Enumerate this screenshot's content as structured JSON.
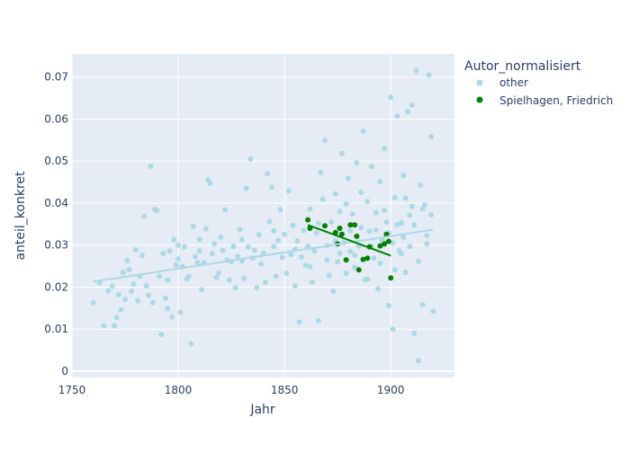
{
  "chart_data": {
    "type": "scatter",
    "xlabel": "Jahr",
    "ylabel": "anteil_konkret",
    "xlim": [
      1750,
      1930
    ],
    "ylim": [
      -0.0015,
      0.0755
    ],
    "xticks": [
      1750,
      1800,
      1850,
      1900
    ],
    "yticks": [
      0,
      0.01,
      0.02,
      0.03,
      0.04,
      0.05,
      0.06,
      0.07
    ],
    "xtick_labels": [
      "1750",
      "1800",
      "1850",
      "1900"
    ],
    "ytick_labels": [
      "0",
      "0.01",
      "0.02",
      "0.03",
      "0.04",
      "0.05",
      "0.06",
      "0.07"
    ],
    "grid": true,
    "legend": {
      "title": "Autor_normalisiert",
      "placement": "top-right-outside"
    },
    "series": [
      {
        "name": "other",
        "color": "#add8e6",
        "trendline": {
          "x": [
            1760,
            1920
          ],
          "y": [
            0.0213,
            0.0337
          ]
        },
        "points": [
          [
            1760,
            0.0163
          ],
          [
            1763,
            0.021
          ],
          [
            1765,
            0.0108
          ],
          [
            1767,
            0.0191
          ],
          [
            1769,
            0.0202
          ],
          [
            1770,
            0.0108
          ],
          [
            1771,
            0.0128
          ],
          [
            1772,
            0.0182
          ],
          [
            1773,
            0.0146
          ],
          [
            1774,
            0.0235
          ],
          [
            1775,
            0.0171
          ],
          [
            1776,
            0.0263
          ],
          [
            1777,
            0.0242
          ],
          [
            1778,
            0.019
          ],
          [
            1779,
            0.0207
          ],
          [
            1780,
            0.0289
          ],
          [
            1781,
            0.0168
          ],
          [
            1782,
            0.0226
          ],
          [
            1783,
            0.0275
          ],
          [
            1784,
            0.0368
          ],
          [
            1785,
            0.0203
          ],
          [
            1786,
            0.0181
          ],
          [
            1787,
            0.0488
          ],
          [
            1788,
            0.0163
          ],
          [
            1789,
            0.0385
          ],
          [
            1790,
            0.0382
          ],
          [
            1791,
            0.0226
          ],
          [
            1792,
            0.0087
          ],
          [
            1793,
            0.028
          ],
          [
            1794,
            0.0174
          ],
          [
            1795,
            0.0217
          ],
          [
            1796,
            0.0286
          ],
          [
            1797,
            0.0129
          ],
          [
            1798,
            0.0313
          ],
          [
            1799,
            0.0253
          ],
          [
            1800,
            0.03
          ],
          [
            1801,
            0.014
          ],
          [
            1802,
            0.0249
          ],
          [
            1803,
            0.0296
          ],
          [
            1804,
            0.022
          ],
          [
            1805,
            0.0225
          ],
          [
            1806,
            0.0065
          ],
          [
            1807,
            0.0345
          ],
          [
            1808,
            0.0273
          ],
          [
            1809,
            0.0259
          ],
          [
            1810,
            0.0314
          ],
          [
            1811,
            0.0194
          ],
          [
            1812,
            0.0258
          ],
          [
            1813,
            0.0339
          ],
          [
            1814,
            0.0455
          ],
          [
            1815,
            0.0447
          ],
          [
            1816,
            0.028
          ],
          [
            1817,
            0.0303
          ],
          [
            1818,
            0.0223
          ],
          [
            1819,
            0.0234
          ],
          [
            1820,
            0.0319
          ],
          [
            1821,
            0.0287
          ],
          [
            1822,
            0.0384
          ],
          [
            1823,
            0.0265
          ],
          [
            1824,
            0.0217
          ],
          [
            1825,
            0.026
          ],
          [
            1826,
            0.0297
          ],
          [
            1827,
            0.0198
          ],
          [
            1828,
            0.0273
          ],
          [
            1829,
            0.0337
          ],
          [
            1830,
            0.0313
          ],
          [
            1831,
            0.0221
          ],
          [
            1832,
            0.0435
          ],
          [
            1833,
            0.0296
          ],
          [
            1834,
            0.0505
          ],
          [
            1835,
            0.0269
          ],
          [
            1836,
            0.0288
          ],
          [
            1837,
            0.0198
          ],
          [
            1838,
            0.0325
          ],
          [
            1839,
            0.0255
          ],
          [
            1840,
            0.0281
          ],
          [
            1841,
            0.0212
          ],
          [
            1842,
            0.047
          ],
          [
            1843,
            0.0356
          ],
          [
            1844,
            0.0438
          ],
          [
            1845,
            0.0297
          ],
          [
            1846,
            0.0226
          ],
          [
            1847,
            0.0311
          ],
          [
            1848,
            0.0385
          ],
          [
            1849,
            0.0271
          ],
          [
            1850,
            0.0326
          ],
          [
            1851,
            0.0233
          ],
          [
            1852,
            0.0429
          ],
          [
            1853,
            0.0278
          ],
          [
            1854,
            0.0347
          ],
          [
            1855,
            0.0203
          ],
          [
            1856,
            0.031
          ],
          [
            1857,
            0.0117
          ],
          [
            1858,
            0.0272
          ],
          [
            1859,
            0.0335
          ],
          [
            1860,
            0.0252
          ],
          [
            1861,
            0.0297
          ],
          [
            1862,
            0.0386
          ],
          [
            1863,
            0.0212
          ],
          [
            1864,
            0.0286
          ],
          [
            1865,
            0.0329
          ],
          [
            1866,
            0.012
          ],
          [
            1867,
            0.0473
          ],
          [
            1868,
            0.0409
          ],
          [
            1869,
            0.0549
          ],
          [
            1870,
            0.0299
          ],
          [
            1871,
            0.0228
          ],
          [
            1872,
            0.0355
          ],
          [
            1873,
            0.019
          ],
          [
            1874,
            0.0422
          ],
          [
            1875,
            0.026
          ],
          [
            1876,
            0.038
          ],
          [
            1877,
            0.0518
          ],
          [
            1878,
            0.0306
          ],
          [
            1879,
            0.0233
          ],
          [
            1880,
            0.0459
          ],
          [
            1881,
            0.0285
          ],
          [
            1882,
            0.0374
          ],
          [
            1883,
            0.0247
          ],
          [
            1884,
            0.0496
          ],
          [
            1885,
            0.0298
          ],
          [
            1886,
            0.0342
          ],
          [
            1887,
            0.0571
          ],
          [
            1888,
            0.0218
          ],
          [
            1889,
            0.0404
          ],
          [
            1890,
            0.0333
          ],
          [
            1891,
            0.0487
          ],
          [
            1892,
            0.0269
          ],
          [
            1893,
            0.0377
          ],
          [
            1894,
            0.0196
          ],
          [
            1895,
            0.0451
          ],
          [
            1896,
            0.0312
          ],
          [
            1897,
            0.053
          ],
          [
            1898,
            0.0355
          ],
          [
            1899,
            0.0156
          ],
          [
            1900,
            0.0652
          ],
          [
            1901,
            0.01
          ],
          [
            1902,
            0.0413
          ],
          [
            1903,
            0.0607
          ],
          [
            1904,
            0.0286
          ],
          [
            1905,
            0.0353
          ],
          [
            1906,
            0.0466
          ],
          [
            1907,
            0.0235
          ],
          [
            1908,
            0.0618
          ],
          [
            1909,
            0.0371
          ],
          [
            1910,
            0.0633
          ],
          [
            1911,
            0.009
          ],
          [
            1912,
            0.0715
          ],
          [
            1913,
            0.0025
          ],
          [
            1914,
            0.0443
          ],
          [
            1915,
            0.0158
          ],
          [
            1916,
            0.0396
          ],
          [
            1917,
            0.0303
          ],
          [
            1918,
            0.0705
          ],
          [
            1919,
            0.0558
          ],
          [
            1920,
            0.0143
          ],
          [
            1795,
            0.0149
          ],
          [
            1800,
            0.0267
          ],
          [
            1810,
            0.0286
          ],
          [
            1830,
            0.0262
          ],
          [
            1845,
            0.0334
          ],
          [
            1855,
            0.029
          ],
          [
            1862,
            0.0249
          ],
          [
            1866,
            0.0352
          ],
          [
            1870,
            0.0264
          ],
          [
            1874,
            0.031
          ],
          [
            1876,
            0.0281
          ],
          [
            1879,
            0.0398
          ],
          [
            1881,
            0.0334
          ],
          [
            1883,
            0.0276
          ],
          [
            1886,
            0.0426
          ],
          [
            1889,
            0.0219
          ],
          [
            1891,
            0.0297
          ],
          [
            1893,
            0.0336
          ],
          [
            1895,
            0.0257
          ],
          [
            1897,
            0.0383
          ],
          [
            1899,
            0.0329
          ],
          [
            1901,
            0.0305
          ],
          [
            1903,
            0.0349
          ],
          [
            1905,
            0.0279
          ],
          [
            1907,
            0.0412
          ],
          [
            1909,
            0.0297
          ],
          [
            1911,
            0.0348
          ],
          [
            1913,
            0.0262
          ],
          [
            1915,
            0.0386
          ],
          [
            1917,
            0.0323
          ],
          [
            1919,
            0.0372
          ],
          [
            1902,
            0.0241
          ],
          [
            1906,
            0.0319
          ],
          [
            1910,
            0.0392
          ]
        ]
      },
      {
        "name": "Spielhagen, Friedrich",
        "color": "#008000",
        "trendline": {
          "x": [
            1861,
            1900
          ],
          "y": [
            0.0348,
            0.0275
          ]
        },
        "points": [
          [
            1861,
            0.036
          ],
          [
            1862,
            0.034
          ],
          [
            1869,
            0.0346
          ],
          [
            1874,
            0.033
          ],
          [
            1875,
            0.0303
          ],
          [
            1876,
            0.034
          ],
          [
            1877,
            0.0326
          ],
          [
            1879,
            0.0265
          ],
          [
            1881,
            0.0348
          ],
          [
            1883,
            0.0348
          ],
          [
            1884,
            0.0321
          ],
          [
            1885,
            0.0241
          ],
          [
            1887,
            0.0266
          ],
          [
            1889,
            0.0269
          ],
          [
            1890,
            0.0296
          ],
          [
            1895,
            0.0298
          ],
          [
            1897,
            0.0303
          ],
          [
            1898,
            0.0326
          ],
          [
            1899,
            0.0309
          ],
          [
            1900,
            0.0222
          ]
        ]
      }
    ]
  }
}
